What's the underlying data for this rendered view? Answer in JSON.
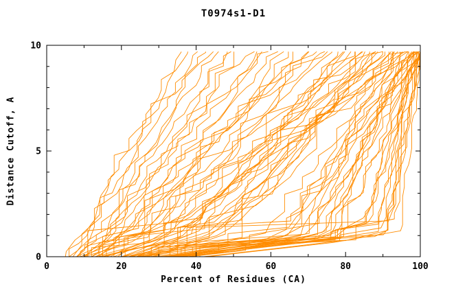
{
  "chart_data": {
    "type": "line",
    "title": "T0974s1-D1",
    "xlabel": "Percent of Residues (CA)",
    "ylabel": "Distance Cutoff, A",
    "xlim": [
      0,
      100
    ],
    "ylim": [
      0,
      10
    ],
    "x_major_ticks": [
      0,
      20,
      40,
      60,
      80,
      100
    ],
    "x_minor_step": 10,
    "y_major_ticks": [
      0,
      5,
      10
    ],
    "y_minor_step": 1,
    "grid": false,
    "legend": "none",
    "line_color": "#ff8c00",
    "axis_color": "#000000",
    "y_top_of_curves": 9.7,
    "curves_format": "each curve = [x_at_y0, x_at_y1, x_at_ytop] percent values; curves are monotone non-decreasing in x as distance cutoff rises",
    "jitter_seed": 1234,
    "curves": [
      [
        5,
        9,
        36
      ],
      [
        6,
        10,
        40
      ],
      [
        6,
        12,
        38
      ],
      [
        7,
        11,
        44
      ],
      [
        8,
        13,
        42
      ],
      [
        8,
        15,
        48
      ],
      [
        9,
        14,
        52
      ],
      [
        10,
        16,
        46
      ],
      [
        10,
        18,
        55
      ],
      [
        11,
        20,
        60
      ],
      [
        12,
        17,
        50
      ],
      [
        12,
        22,
        58
      ],
      [
        13,
        24,
        65
      ],
      [
        14,
        21,
        62
      ],
      [
        14,
        26,
        70
      ],
      [
        15,
        23,
        57
      ],
      [
        15,
        28,
        68
      ],
      [
        16,
        25,
        75
      ],
      [
        16,
        30,
        64
      ],
      [
        17,
        27,
        72
      ],
      [
        18,
        32,
        70
      ],
      [
        18,
        35,
        78
      ],
      [
        19,
        30,
        74
      ],
      [
        20,
        38,
        82
      ],
      [
        20,
        33,
        76
      ],
      [
        21,
        40,
        85
      ],
      [
        22,
        36,
        80
      ],
      [
        22,
        42,
        88
      ],
      [
        23,
        39,
        84
      ],
      [
        24,
        44,
        90
      ],
      [
        24,
        37,
        79
      ],
      [
        25,
        46,
        86
      ],
      [
        26,
        41,
        92
      ],
      [
        26,
        48,
        83
      ],
      [
        27,
        45,
        95
      ],
      [
        28,
        50,
        88
      ],
      [
        20,
        55,
        90
      ],
      [
        22,
        60,
        93
      ],
      [
        24,
        58,
        96
      ],
      [
        25,
        65,
        92
      ],
      [
        26,
        62,
        97
      ],
      [
        28,
        68,
        94
      ],
      [
        28,
        70,
        98
      ],
      [
        30,
        64,
        99
      ],
      [
        30,
        72,
        95
      ],
      [
        31,
        66,
        100
      ],
      [
        32,
        74,
        97
      ],
      [
        33,
        69,
        99
      ],
      [
        34,
        76,
        96
      ],
      [
        34,
        71,
        100
      ],
      [
        35,
        78,
        98
      ],
      [
        36,
        73,
        99
      ],
      [
        36,
        80,
        100
      ],
      [
        38,
        75,
        97
      ],
      [
        38,
        82,
        99
      ],
      [
        40,
        77,
        100
      ],
      [
        30,
        85,
        100
      ],
      [
        32,
        88,
        99
      ],
      [
        33,
        84,
        100
      ],
      [
        35,
        90,
        100
      ],
      [
        36,
        86,
        98
      ],
      [
        37,
        91,
        100
      ],
      [
        38,
        87,
        99
      ],
      [
        39,
        92,
        100
      ],
      [
        40,
        89,
        100
      ],
      [
        41,
        93,
        100
      ],
      [
        42,
        90,
        99
      ],
      [
        43,
        94,
        100
      ],
      [
        8,
        20,
        88
      ],
      [
        9,
        25,
        92
      ],
      [
        10,
        30,
        96
      ],
      [
        11,
        28,
        85
      ],
      [
        12,
        35,
        98
      ],
      [
        13,
        32,
        90
      ],
      [
        14,
        40,
        99
      ],
      [
        15,
        38,
        94
      ]
    ]
  }
}
